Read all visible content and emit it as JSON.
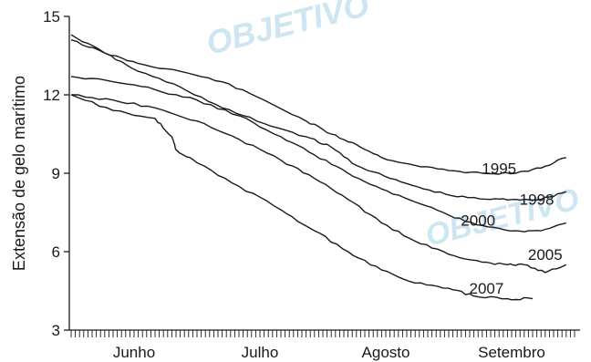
{
  "watermark": "OBJETIVO",
  "chart_data": {
    "type": "line",
    "title": "",
    "xlabel": "",
    "ylabel": "Extensão de gelo marítimo",
    "ylim": [
      3,
      15
    ],
    "yticks": [
      3,
      6,
      9,
      12,
      15
    ],
    "x_month_labels": [
      "Junho",
      "Julho",
      "Agosto",
      "Setembro"
    ],
    "x_day_range": [
      0,
      120
    ],
    "grid": false,
    "legend": "direct labels at line ends",
    "series": [
      {
        "name": "1995",
        "x": [
          0,
          8,
          16,
          26,
          36,
          46,
          56,
          62,
          68,
          74,
          82,
          90,
          98,
          106,
          112,
          118
        ],
        "y": [
          14.3,
          13.6,
          13.2,
          12.9,
          12.5,
          11.8,
          11.0,
          10.5,
          10.1,
          9.6,
          9.3,
          9.1,
          9.0,
          9.0,
          9.2,
          9.6
        ]
      },
      {
        "name": "1998",
        "x": [
          0,
          8,
          16,
          26,
          36,
          46,
          56,
          62,
          68,
          76,
          84,
          92,
          100,
          106,
          112,
          118
        ],
        "y": [
          14.1,
          13.6,
          12.9,
          12.3,
          11.5,
          10.9,
          10.4,
          10.0,
          9.3,
          8.8,
          8.4,
          8.1,
          8.0,
          8.0,
          8.0,
          8.3
        ]
      },
      {
        "name": "2000",
        "x": [
          0,
          10,
          20,
          30,
          40,
          50,
          58,
          66,
          74,
          82,
          90,
          98,
          106,
          112,
          118
        ],
        "y": [
          12.7,
          12.5,
          12.2,
          11.8,
          11.2,
          10.4,
          9.7,
          9.0,
          8.4,
          7.9,
          7.4,
          7.0,
          6.8,
          6.8,
          7.1
        ]
      },
      {
        "name": "2005",
        "x": [
          0,
          10,
          20,
          30,
          40,
          50,
          58,
          66,
          74,
          82,
          90,
          98,
          104,
          108,
          113,
          118
        ],
        "y": [
          12.0,
          11.8,
          11.5,
          11.0,
          10.3,
          9.5,
          8.8,
          8.0,
          7.1,
          6.4,
          5.9,
          5.6,
          5.5,
          5.5,
          5.2,
          5.5
        ]
      },
      {
        "name": "2007",
        "x": [
          0,
          10,
          20,
          24,
          25,
          30,
          40,
          50,
          58,
          66,
          74,
          82,
          90,
          96,
          104,
          110
        ],
        "y": [
          12.0,
          11.4,
          11.1,
          10.4,
          9.9,
          9.4,
          8.5,
          7.6,
          6.8,
          6.0,
          5.3,
          4.8,
          4.6,
          4.3,
          4.2,
          4.2
        ]
      }
    ],
    "label_positions": [
      {
        "name": "1995",
        "x": 102,
        "y": 9.2
      },
      {
        "name": "1998",
        "x": 111,
        "y": 8.0
      },
      {
        "name": "2000",
        "x": 97,
        "y": 7.2
      },
      {
        "name": "2005",
        "x": 113,
        "y": 5.9
      },
      {
        "name": "2007",
        "x": 99,
        "y": 4.6
      }
    ]
  }
}
